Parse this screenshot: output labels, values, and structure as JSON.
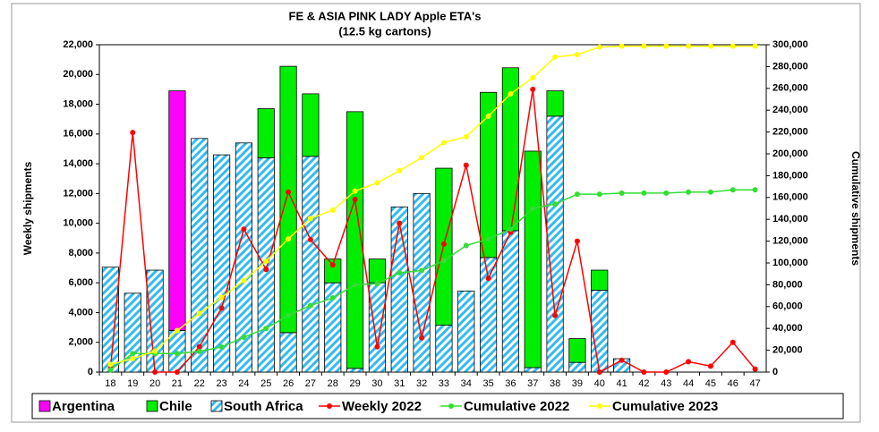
{
  "chart_data": {
    "type": "bar",
    "title": "FE & ASIA PINK LADY Apple ETA's",
    "subtitle": "(12.5 kg cartons)",
    "y_label": "Weekly shipments",
    "y2_label": "Cumulative shipments",
    "categories": [
      "18",
      "19",
      "20",
      "21",
      "22",
      "23",
      "24",
      "25",
      "26",
      "27",
      "28",
      "29",
      "30",
      "31",
      "32",
      "33",
      "34",
      "35",
      "36",
      "37",
      "38",
      "39",
      "40",
      "41",
      "42",
      "43",
      "44",
      "45",
      "46",
      "47"
    ],
    "series": [
      {
        "name": "Argentina",
        "kind": "bar",
        "color": "#ff00ff",
        "values": [
          0,
          0,
          0,
          16100,
          0,
          0,
          0,
          0,
          0,
          0,
          0,
          0,
          0,
          0,
          0,
          0,
          0,
          0,
          0,
          0,
          0,
          0,
          0,
          0,
          0,
          0,
          0,
          0,
          0,
          0
        ]
      },
      {
        "name": "Chile",
        "kind": "bar",
        "color": "#00ee00",
        "values": [
          0,
          0,
          0,
          0,
          0,
          0,
          0,
          3300,
          17900,
          4200,
          1600,
          17250,
          1600,
          0,
          0,
          10550,
          0,
          11100,
          10950,
          14550,
          1700,
          1600,
          1350,
          0,
          0,
          0,
          0,
          0,
          0,
          0
        ]
      },
      {
        "name": "South Africa",
        "kind": "hatched-bar",
        "color": "#33bbee",
        "values": [
          7050,
          5300,
          6850,
          2800,
          15700,
          14600,
          15400,
          14400,
          2650,
          14500,
          6000,
          250,
          6000,
          11100,
          12000,
          3150,
          5450,
          7700,
          9500,
          300,
          17200,
          650,
          5500,
          900,
          0,
          0,
          0,
          0,
          0,
          0
        ]
      },
      {
        "name": "Weekly 2022",
        "kind": "line",
        "color": "#ff0000",
        "values": [
          250,
          16100,
          0,
          0,
          1700,
          4300,
          9600,
          6900,
          12100,
          8900,
          7200,
          11600,
          1700,
          10000,
          2300,
          8600,
          13900,
          6300,
          9400,
          19000,
          3800,
          8800,
          0,
          800,
          0,
          0,
          700,
          400,
          2000,
          200
        ]
      },
      {
        "name": "Cumulative 2022",
        "kind": "line",
        "axis": "y2",
        "color": "#33dd33",
        "values": [
          2000,
          17000,
          17000,
          17000,
          19000,
          23000,
          32000,
          40000,
          52000,
          61000,
          68000,
          80000,
          81000,
          91000,
          93000,
          102000,
          116000,
          122000,
          131000,
          150000,
          154000,
          163000,
          163000,
          164000,
          164000,
          164000,
          165000,
          165000,
          167000,
          167000
        ]
      },
      {
        "name": "Cumulative 2023",
        "kind": "line",
        "axis": "y2",
        "color": "#ffff00",
        "values": [
          7050,
          12350,
          19200,
          38100,
          53800,
          68400,
          83800,
          101500,
          122050,
          140750,
          148350,
          165850,
          173450,
          184550,
          196550,
          210250,
          215700,
          234500,
          254950,
          269800,
          288700,
          290950,
          297800,
          298700,
          298700,
          298700,
          298700,
          298700,
          298700,
          298700
        ]
      }
    ],
    "ylim": [
      0,
      22000
    ],
    "yticks": [
      0,
      {
        "value": 2000,
        "label": "2,000"
      },
      {
        "value": 4000,
        "label": "4,000"
      },
      {
        "value": 6000,
        "label": "6,000"
      },
      {
        "value": 8000,
        "label": "8,000"
      },
      {
        "value": 10000,
        "label": "10,000"
      },
      {
        "value": 12000,
        "label": "12,000"
      },
      {
        "value": 14000,
        "label": "14,000"
      },
      {
        "value": 16000,
        "label": "16,000"
      },
      {
        "value": 18000,
        "label": "18,000"
      },
      {
        "value": 20000,
        "label": "20,000"
      },
      {
        "value": 22000,
        "label": "22,000"
      }
    ],
    "y2lim": [
      0,
      300000
    ],
    "y2ticks": [
      0,
      {
        "value": 20000,
        "label": "20,000"
      },
      {
        "value": 40000,
        "label": "40,000"
      },
      {
        "value": 60000,
        "label": "60,000"
      },
      {
        "value": 80000,
        "label": "80,000"
      },
      {
        "value": 100000,
        "label": "100,000"
      },
      {
        "value": 120000,
        "label": "120,000"
      },
      {
        "value": 140000,
        "label": "140,000"
      },
      {
        "value": 160000,
        "label": "160,000"
      },
      {
        "value": 180000,
        "label": "180,000"
      },
      {
        "value": 200000,
        "label": "200,000"
      },
      {
        "value": 220000,
        "label": "220,000"
      },
      {
        "value": 240000,
        "label": "240,000"
      },
      {
        "value": 260000,
        "label": "260,000"
      },
      {
        "value": 280000,
        "label": "280,000"
      },
      {
        "value": 300000,
        "label": "300,000"
      }
    ],
    "legend": "bottom"
  }
}
